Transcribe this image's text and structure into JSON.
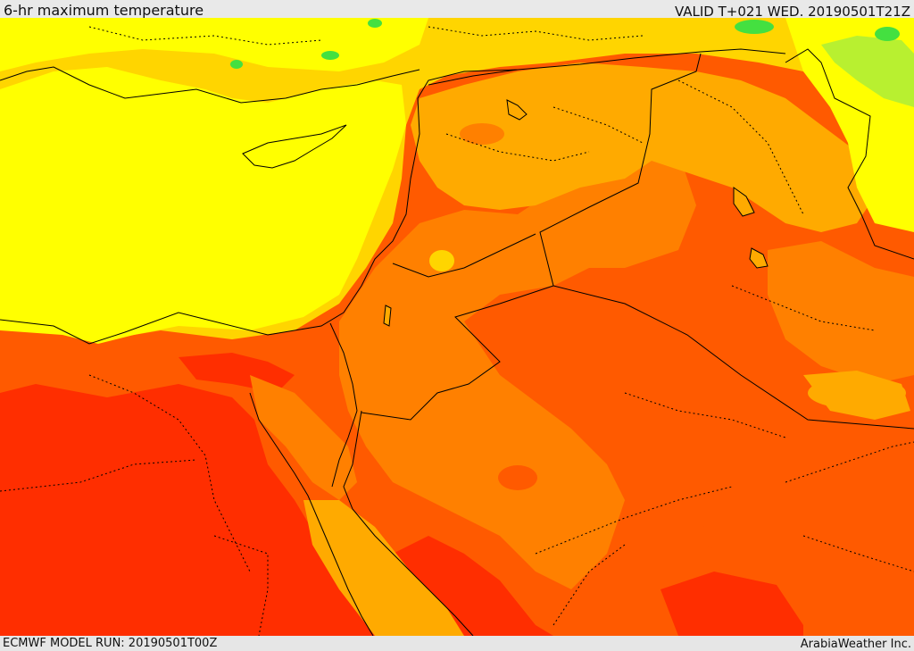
{
  "header": {
    "title": "6-hr maximum temperature",
    "valid_time": "VALID T+021 WED. 20190501T21Z"
  },
  "footer": {
    "model_run": "ECMWF MODEL RUN: 20190501T00Z",
    "credit": "ArabiaWeather Inc."
  },
  "map": {
    "region": "Eastern Mediterranean and Middle East",
    "field": "6-hr maximum temperature",
    "palette": {
      "green": "#44e040",
      "light_green": "#b8f030",
      "yellow": "#ffff00",
      "gold": "#ffd500",
      "light_orange": "#ffaa00",
      "orange": "#ff8000",
      "dark_orange": "#ff5a00",
      "red": "#ff2e00"
    },
    "border_color": "#000000",
    "show_country_borders": true,
    "show_admin_borders_dotted": true
  }
}
